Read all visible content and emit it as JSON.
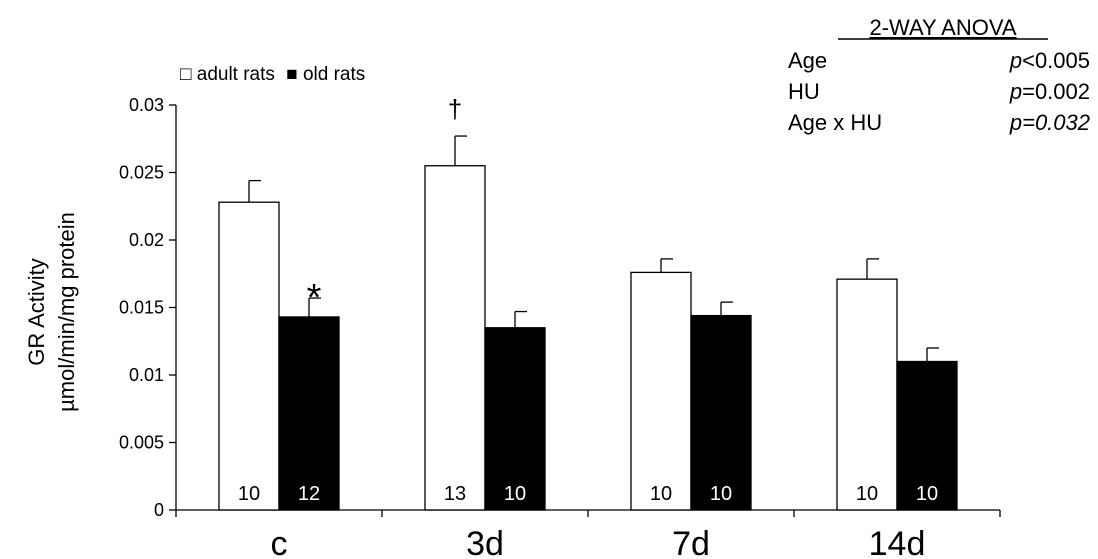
{
  "chart_data": {
    "type": "bar",
    "title": "",
    "xlabel": "",
    "ylabel_line1": "GR Activity",
    "ylabel_line2": "µmol/min/mg protein",
    "ylim": [
      0,
      0.03
    ],
    "yticks": [
      "0",
      "0.005",
      "0.01",
      "0.015",
      "0.02",
      "0.025",
      "0.03"
    ],
    "yticks_values": [
      0,
      0.005,
      0.01,
      0.015,
      0.02,
      0.025,
      0.03
    ],
    "grid": false,
    "legend_position": "top-left",
    "categories": [
      "c",
      "3d",
      "7d",
      "14d"
    ],
    "series": [
      {
        "name": "adult rats",
        "legend_label": "□ adult rats",
        "fill": "#ffffff",
        "values": [
          0.0228,
          0.0255,
          0.0176,
          0.0171
        ],
        "errors": [
          0.0016,
          0.0022,
          0.001,
          0.0015
        ],
        "n": [
          "10",
          "13",
          "10",
          "10"
        ]
      },
      {
        "name": "old rats",
        "legend_label": "■ old rats",
        "fill": "#000000",
        "values": [
          0.0143,
          0.0135,
          0.0144,
          0.011
        ],
        "errors": [
          0.0014,
          0.0012,
          0.001,
          0.001
        ],
        "n": [
          "12",
          "10",
          "10",
          "10"
        ]
      }
    ],
    "annotations": [
      {
        "text": "*",
        "category": 0,
        "series": 1
      },
      {
        "text": "†",
        "category": 1,
        "series": 0
      }
    ]
  },
  "anova": {
    "title": "2-WAY ANOVA",
    "rows": [
      {
        "label": "Age",
        "p_prefix": "p",
        "p_value": "<0.005",
        "value_italic": false
      },
      {
        "label": "HU",
        "p_prefix": "p",
        "p_value": "=0.002",
        "value_italic": false
      },
      {
        "label": "Age x HU",
        "p_prefix": "p",
        "p_value": "=0.032",
        "value_italic": true
      }
    ]
  }
}
